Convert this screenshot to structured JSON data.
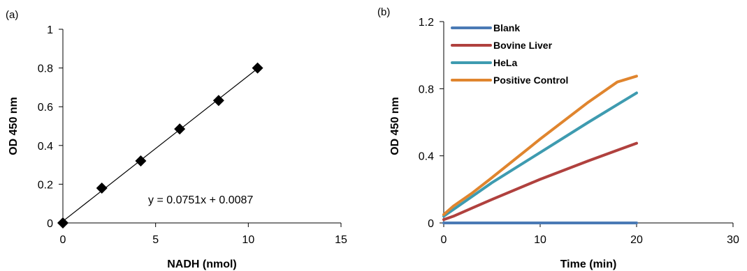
{
  "chart_data": [
    {
      "type": "scatter",
      "panel_label": "(a)",
      "xlabel": "NADH (nmol)",
      "ylabel": "OD 450 nm",
      "xlim": [
        0,
        15
      ],
      "ylim": [
        0,
        1
      ],
      "x_ticks": [
        0,
        5,
        10,
        15
      ],
      "y_ticks": [
        0,
        0.2,
        0.4,
        0.6,
        0.8,
        1
      ],
      "x_tick_labels": [
        "0",
        "5",
        "10",
        "15"
      ],
      "y_tick_labels": [
        "0",
        "0.2",
        "0.4",
        "0.6",
        "0.8",
        "1"
      ],
      "points": [
        {
          "x": 0,
          "y": 0.0
        },
        {
          "x": 2.1,
          "y": 0.18
        },
        {
          "x": 4.2,
          "y": 0.32
        },
        {
          "x": 6.3,
          "y": 0.485
        },
        {
          "x": 8.4,
          "y": 0.632
        },
        {
          "x": 10.5,
          "y": 0.8
        }
      ],
      "trendline": {
        "slope": 0.0751,
        "intercept": 0.0087,
        "x_range": [
          0,
          10.5
        ]
      },
      "equation": "y = 0.0751x + 0.0087",
      "marker_color": "#000000"
    },
    {
      "type": "line",
      "panel_label": "(b)",
      "xlabel": "Time (min)",
      "ylabel": "OD 450 nm",
      "xlim": [
        0,
        30
      ],
      "ylim": [
        0,
        1.2
      ],
      "x_ticks": [
        0,
        10,
        20,
        30
      ],
      "y_ticks": [
        0,
        0.4,
        0.8,
        1.2
      ],
      "x_tick_labels": [
        "0",
        "10",
        "20",
        "30"
      ],
      "y_tick_labels": [
        "0",
        "0.4",
        "0.8",
        "1.2"
      ],
      "legend_position": "top-left",
      "series": [
        {
          "name": "Blank",
          "color": "#4a7ab5",
          "points": [
            [
              0,
              0.0
            ],
            [
              5,
              0.0
            ],
            [
              10,
              0.0
            ],
            [
              15,
              0.0
            ],
            [
              20,
              0.0
            ]
          ]
        },
        {
          "name": "Bovine Liver",
          "color": "#b0413e",
          "points": [
            [
              0,
              0.02
            ],
            [
              1,
              0.04
            ],
            [
              3,
              0.09
            ],
            [
              5,
              0.14
            ],
            [
              10,
              0.26
            ],
            [
              15,
              0.37
            ],
            [
              20,
              0.475
            ]
          ]
        },
        {
          "name": "HeLa",
          "color": "#3e9bb0",
          "points": [
            [
              0,
              0.04
            ],
            [
              1,
              0.08
            ],
            [
              3,
              0.16
            ],
            [
              5,
              0.24
            ],
            [
              10,
              0.42
            ],
            [
              15,
              0.6
            ],
            [
              20,
              0.775
            ]
          ]
        },
        {
          "name": "Positive Control",
          "color": "#e0852e",
          "points": [
            [
              0,
              0.05
            ],
            [
              1,
              0.1
            ],
            [
              3,
              0.18
            ],
            [
              5,
              0.27
            ],
            [
              10,
              0.5
            ],
            [
              15,
              0.72
            ],
            [
              18,
              0.84
            ],
            [
              20,
              0.875
            ]
          ]
        }
      ]
    }
  ]
}
